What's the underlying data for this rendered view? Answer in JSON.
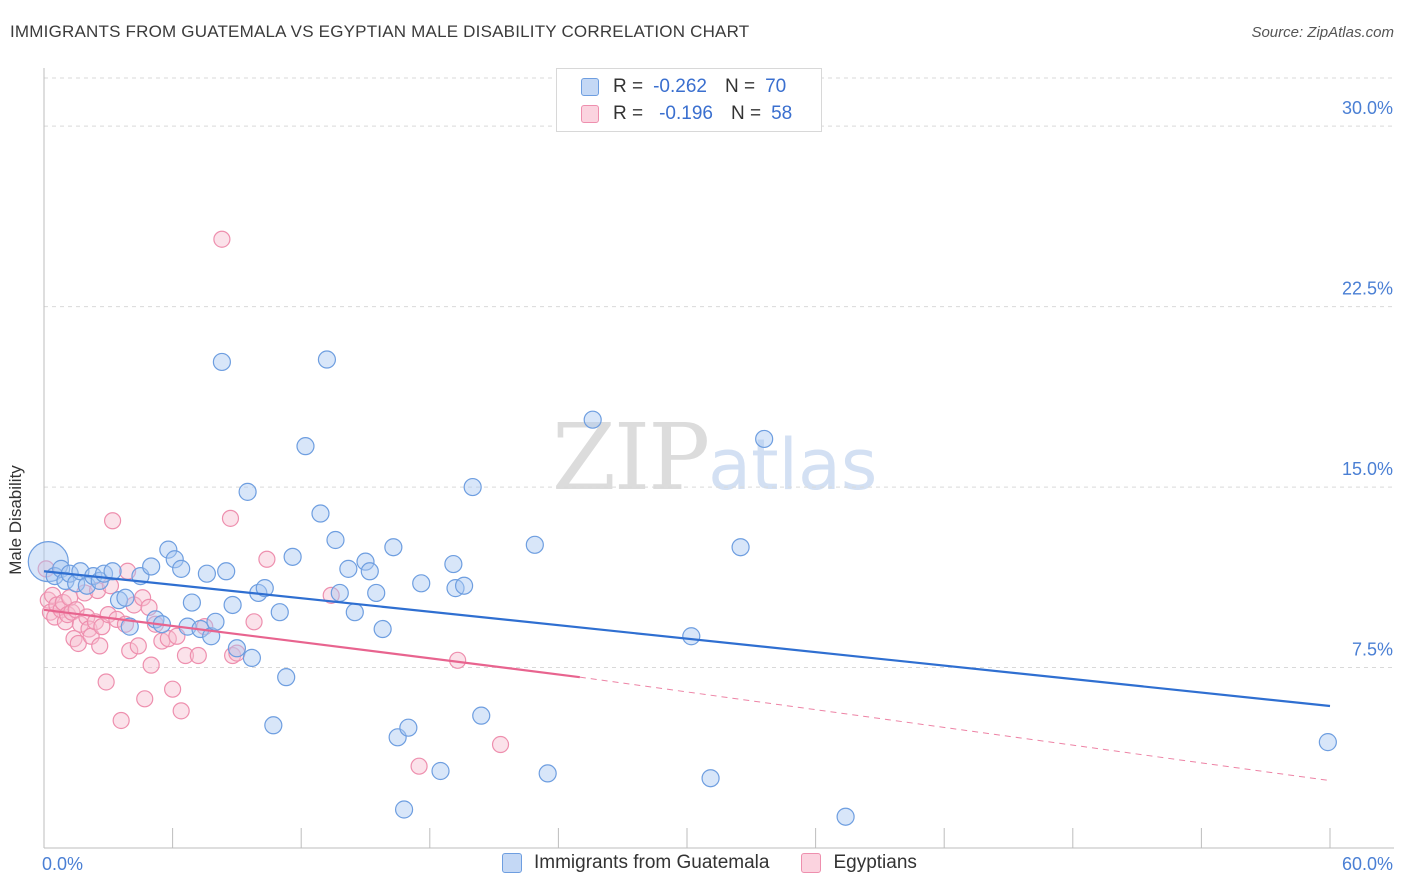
{
  "header": {
    "title": "IMMIGRANTS FROM GUATEMALA VS EGYPTIAN MALE DISABILITY CORRELATION CHART",
    "source": "Source: ZipAtlas.com"
  },
  "watermark": {
    "zip": "ZIP",
    "atlas": "atlas"
  },
  "legend_stats": [
    {
      "r_label": "R =",
      "r_value": "-0.262",
      "n_label": "N =",
      "n_value": "70"
    },
    {
      "r_label": "R =",
      "r_value": "-0.196",
      "n_label": "N =",
      "n_value": "58"
    }
  ],
  "colors": {
    "series1_fill": "#a9c8f2",
    "series1_stroke": "#6e9ee0",
    "series1_line": "#2f6fd1",
    "series2_fill": "#f7bfd0",
    "series2_stroke": "#ee8fae",
    "series2_line": "#e8648f",
    "tick_text": "#4a7fd4",
    "grid": "#d9d9d9"
  },
  "chart_data": {
    "type": "scatter",
    "title": "IMMIGRANTS FROM GUATEMALA VS EGYPTIAN MALE DISABILITY CORRELATION CHART",
    "xlabel": "",
    "ylabel": "Male Disability",
    "xlim": [
      0,
      60
    ],
    "ylim": [
      0,
      32
    ],
    "y_ticks": [
      7.5,
      15.0,
      22.5,
      30.0
    ],
    "y_tick_labels": [
      "7.5%",
      "15.0%",
      "22.5%",
      "30.0%"
    ],
    "x_tick_labels": [
      "0.0%",
      "60.0%"
    ],
    "grid": true,
    "legend": "bottom-center",
    "series": [
      {
        "name": "Immigrants from Guatemala",
        "r": -0.262,
        "n": 70,
        "trend": {
          "x": [
            0,
            60
          ],
          "y": [
            11.5,
            5.9
          ]
        },
        "points": [
          [
            0.2,
            11.9
          ],
          [
            0.5,
            11.3
          ],
          [
            0.8,
            11.6
          ],
          [
            1.0,
            11.1
          ],
          [
            1.2,
            11.4
          ],
          [
            1.5,
            11.0
          ],
          [
            1.7,
            11.5
          ],
          [
            2.0,
            10.9
          ],
          [
            2.3,
            11.3
          ],
          [
            2.6,
            11.1
          ],
          [
            2.8,
            11.4
          ],
          [
            3.2,
            11.5
          ],
          [
            3.5,
            10.3
          ],
          [
            3.8,
            10.4
          ],
          [
            4.0,
            9.2
          ],
          [
            4.5,
            11.3
          ],
          [
            5.0,
            11.7
          ],
          [
            5.2,
            9.5
          ],
          [
            5.5,
            9.3
          ],
          [
            5.8,
            12.4
          ],
          [
            6.1,
            12.0
          ],
          [
            6.4,
            11.6
          ],
          [
            6.7,
            9.2
          ],
          [
            6.9,
            10.2
          ],
          [
            7.3,
            9.1
          ],
          [
            7.6,
            11.4
          ],
          [
            7.8,
            8.8
          ],
          [
            8.0,
            9.4
          ],
          [
            8.3,
            20.2
          ],
          [
            8.5,
            11.5
          ],
          [
            8.8,
            10.1
          ],
          [
            9.0,
            8.3
          ],
          [
            9.5,
            14.8
          ],
          [
            9.7,
            7.9
          ],
          [
            10.0,
            10.6
          ],
          [
            10.3,
            10.8
          ],
          [
            10.7,
            5.1
          ],
          [
            11.0,
            9.8
          ],
          [
            11.3,
            7.1
          ],
          [
            11.6,
            12.1
          ],
          [
            12.2,
            16.7
          ],
          [
            12.9,
            13.9
          ],
          [
            13.2,
            20.3
          ],
          [
            13.6,
            12.8
          ],
          [
            13.8,
            10.6
          ],
          [
            14.2,
            11.6
          ],
          [
            14.5,
            9.8
          ],
          [
            15.0,
            11.9
          ],
          [
            15.2,
            11.5
          ],
          [
            15.5,
            10.6
          ],
          [
            15.8,
            9.1
          ],
          [
            16.3,
            12.5
          ],
          [
            16.5,
            4.6
          ],
          [
            16.8,
            1.6
          ],
          [
            17.0,
            5.0
          ],
          [
            17.6,
            11.0
          ],
          [
            18.5,
            3.2
          ],
          [
            19.1,
            11.8
          ],
          [
            19.2,
            10.8
          ],
          [
            19.6,
            10.9
          ],
          [
            20.0,
            15.0
          ],
          [
            20.4,
            5.5
          ],
          [
            22.9,
            12.6
          ],
          [
            23.5,
            3.1
          ],
          [
            25.6,
            17.8
          ],
          [
            30.2,
            8.8
          ],
          [
            31.1,
            2.9
          ],
          [
            32.5,
            12.5
          ],
          [
            33.6,
            17.0
          ],
          [
            37.4,
            1.3
          ],
          [
            59.9,
            4.4
          ]
        ]
      },
      {
        "name": "Egyptians",
        "r": -0.196,
        "n": 58,
        "trend": {
          "x": [
            0,
            25
          ],
          "y": [
            9.9,
            7.1
          ]
        },
        "trend_dashed": {
          "x": [
            25,
            60
          ],
          "y": [
            7.1,
            2.8
          ]
        },
        "points": [
          [
            0.1,
            11.6
          ],
          [
            0.2,
            10.3
          ],
          [
            0.3,
            9.8
          ],
          [
            0.4,
            10.5
          ],
          [
            0.5,
            9.6
          ],
          [
            0.6,
            10.1
          ],
          [
            0.8,
            9.9
          ],
          [
            0.9,
            10.2
          ],
          [
            1.0,
            9.4
          ],
          [
            1.1,
            9.7
          ],
          [
            1.2,
            10.4
          ],
          [
            1.3,
            9.8
          ],
          [
            1.4,
            8.7
          ],
          [
            1.5,
            9.9
          ],
          [
            1.6,
            8.5
          ],
          [
            1.7,
            9.3
          ],
          [
            1.9,
            10.6
          ],
          [
            2.0,
            9.6
          ],
          [
            2.1,
            9.1
          ],
          [
            2.2,
            8.8
          ],
          [
            2.4,
            9.4
          ],
          [
            2.5,
            10.7
          ],
          [
            2.6,
            8.4
          ],
          [
            2.7,
            9.2
          ],
          [
            2.9,
            6.9
          ],
          [
            3.0,
            9.7
          ],
          [
            3.1,
            10.9
          ],
          [
            3.2,
            13.6
          ],
          [
            3.4,
            9.5
          ],
          [
            3.6,
            5.3
          ],
          [
            3.8,
            9.3
          ],
          [
            3.9,
            11.5
          ],
          [
            4.0,
            8.2
          ],
          [
            4.2,
            10.1
          ],
          [
            4.4,
            8.4
          ],
          [
            4.6,
            10.4
          ],
          [
            4.7,
            6.2
          ],
          [
            4.9,
            10.0
          ],
          [
            5.0,
            7.6
          ],
          [
            5.2,
            9.3
          ],
          [
            5.5,
            8.6
          ],
          [
            5.8,
            8.7
          ],
          [
            6.0,
            6.6
          ],
          [
            6.2,
            8.8
          ],
          [
            6.4,
            5.7
          ],
          [
            6.6,
            8.0
          ],
          [
            7.2,
            8.0
          ],
          [
            7.5,
            9.2
          ],
          [
            8.3,
            25.3
          ],
          [
            8.7,
            13.7
          ],
          [
            8.8,
            8.0
          ],
          [
            9.0,
            8.1
          ],
          [
            9.8,
            9.4
          ],
          [
            10.4,
            12.0
          ],
          [
            13.4,
            10.5
          ],
          [
            17.5,
            3.4
          ],
          [
            19.3,
            7.8
          ],
          [
            21.3,
            4.3
          ]
        ]
      }
    ]
  }
}
